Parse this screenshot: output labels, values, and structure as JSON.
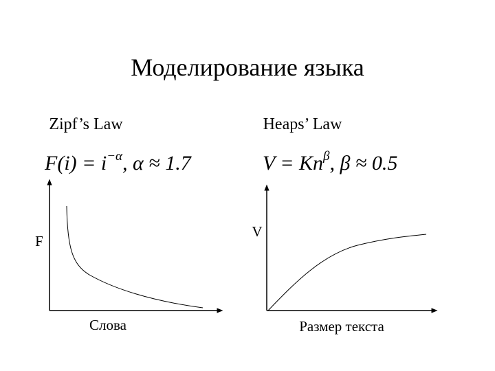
{
  "title": "Моделирование языка",
  "panels": [
    {
      "heading": "Zipf’s Law",
      "formula": {
        "base": "F(i) = i",
        "sup": "−α",
        "rest": ",   α ≈ 1.7"
      },
      "y_label": "F",
      "x_label": "Слова"
    },
    {
      "heading": "Heaps’ Law",
      "formula": {
        "base": "V = Kn",
        "sup": "β",
        "rest": ",   β ≈ 0.5"
      },
      "y_label": "V",
      "x_label": "Размер текста"
    }
  ]
}
